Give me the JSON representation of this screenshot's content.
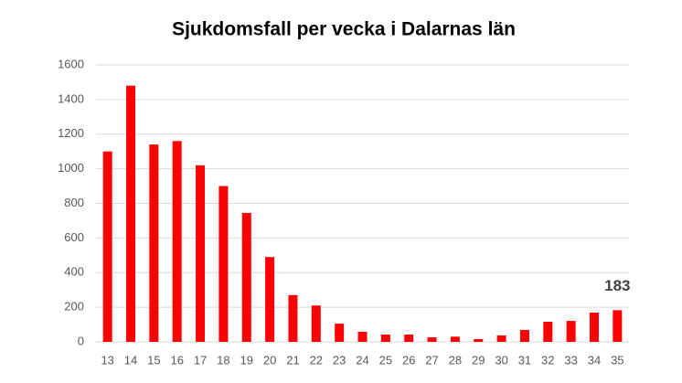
{
  "chart_data": {
    "type": "bar",
    "title": "Sjukdomsfall per vecka i Dalarnas län",
    "categories": [
      "13",
      "14",
      "15",
      "16",
      "17",
      "18",
      "19",
      "20",
      "21",
      "22",
      "23",
      "24",
      "25",
      "26",
      "27",
      "28",
      "29",
      "30",
      "31",
      "32",
      "33",
      "34",
      "35"
    ],
    "values": [
      1100,
      1480,
      1140,
      1160,
      1020,
      900,
      745,
      490,
      270,
      210,
      105,
      58,
      42,
      42,
      26,
      30,
      16,
      37,
      69,
      116,
      121,
      169,
      183
    ],
    "value_labels": [
      null,
      null,
      null,
      null,
      null,
      null,
      null,
      null,
      null,
      null,
      null,
      null,
      null,
      null,
      null,
      null,
      null,
      null,
      null,
      null,
      null,
      null,
      "183"
    ],
    "color": "#ff0000",
    "ylim": [
      0,
      1600
    ],
    "yticks": [
      0,
      200,
      400,
      600,
      800,
      1000,
      1200,
      1400,
      1600
    ],
    "grid": true
  }
}
